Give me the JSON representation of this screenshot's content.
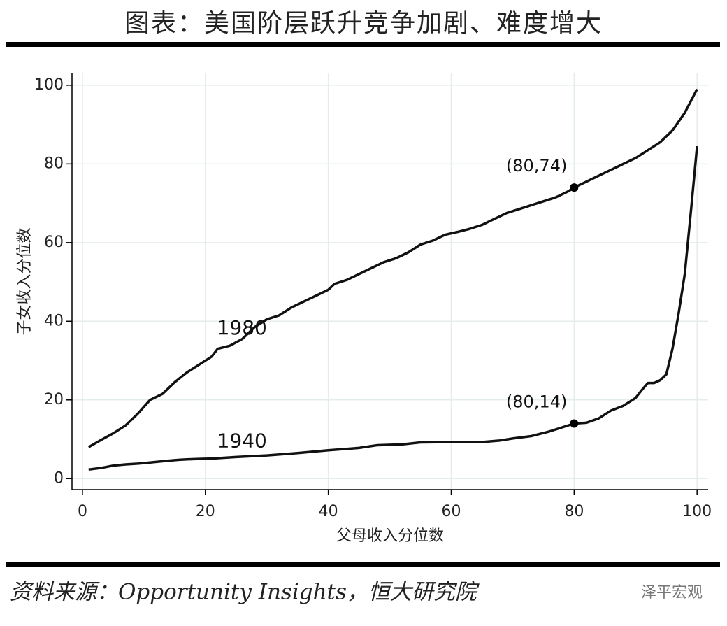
{
  "header": {
    "title": "图表：美国阶层跃升竞争加剧、难度增大"
  },
  "chart_data": {
    "type": "line",
    "xlabel": "父母收入分位数",
    "ylabel": "子女收入分位数",
    "xlim": [
      -1.7,
      101.8
    ],
    "ylim": [
      -2.8,
      103
    ],
    "xticks": [
      0,
      20,
      40,
      60,
      80,
      100
    ],
    "yticks": [
      0,
      20,
      40,
      60,
      80,
      100
    ],
    "grid": true,
    "series": [
      {
        "name": "1980",
        "color": "#111111",
        "x": [
          1,
          3,
          5,
          7,
          9,
          11,
          13,
          15,
          17,
          19,
          21,
          22,
          24,
          26,
          28,
          30,
          32,
          34,
          36,
          38,
          40,
          41,
          43,
          45,
          47,
          49,
          51,
          53,
          55,
          57,
          59,
          61,
          63,
          65,
          67,
          69,
          71,
          73,
          75,
          77,
          79,
          80,
          82,
          84,
          86,
          88,
          90,
          92,
          94,
          96,
          98,
          100
        ],
        "values": [
          8,
          9.8,
          11.5,
          13.5,
          16.5,
          20,
          21.5,
          24.5,
          27,
          29,
          31,
          33,
          33.8,
          35.5,
          38.5,
          40.5,
          41.5,
          43.5,
          45,
          46.5,
          48,
          49.5,
          50.5,
          52,
          53.5,
          55,
          56,
          57.5,
          59.5,
          60.5,
          62,
          62.7,
          63.5,
          64.5,
          66,
          67.5,
          68.5,
          69.5,
          70.5,
          71.5,
          73,
          74,
          75.5,
          77,
          78.5,
          80,
          81.5,
          83.5,
          85.5,
          88.5,
          93,
          99
        ]
      },
      {
        "name": "1940",
        "color": "#111111",
        "x": [
          1,
          3,
          5,
          7,
          9,
          11,
          13,
          15,
          17,
          19,
          21,
          25,
          30,
          35,
          40,
          45,
          48,
          52,
          55,
          60,
          65,
          68,
          70,
          73,
          76,
          78,
          80,
          82,
          84,
          86,
          88,
          90,
          91,
          92,
          93,
          94,
          95,
          96,
          97,
          98,
          99,
          100
        ],
        "values": [
          2.3,
          2.7,
          3.3,
          3.6,
          3.8,
          4.1,
          4.4,
          4.7,
          4.9,
          5,
          5.1,
          5.5,
          5.9,
          6.5,
          7.2,
          7.8,
          8.5,
          8.7,
          9.2,
          9.3,
          9.3,
          9.7,
          10.2,
          10.8,
          12,
          13,
          14,
          14.2,
          15.3,
          17.3,
          18.5,
          20.5,
          22.5,
          24.3,
          24.3,
          25,
          26.5,
          33,
          42,
          52,
          68,
          84.5
        ]
      }
    ],
    "annotations": [
      "(80,74)",
      "(80,14)"
    ]
  },
  "footer": {
    "source": "资料来源：Opportunity Insights，恒大研究院",
    "watermark": "泽平宏观"
  }
}
